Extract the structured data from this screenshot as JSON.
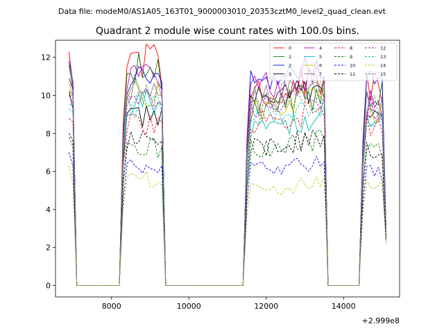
{
  "header": {
    "suptitle": "Data file: modeM0/AS1A05_163T01_9000003010_20353cztM0_level2_quad_clean.evt",
    "title": "Quadrant 2 module wise count rates with 100.0s bins."
  },
  "axis_offset_label": "+2.999e8",
  "colors": {
    "0": "#ff0000",
    "1": "#008000",
    "2": "#0000ff",
    "3": "#000000",
    "4": "#bf00bf",
    "5": "#00bfbf",
    "6": "#bfbf00",
    "7": "#808080"
  },
  "chart_data": {
    "type": "line",
    "title": "Quadrant 2 module wise count rates with 100.0s bins.",
    "xlabel": "",
    "ylabel": "",
    "x_offset": 299900000,
    "xlim": [
      6550,
      15450
    ],
    "ylim": [
      -0.6,
      12.9
    ],
    "x_ticks": [
      8000,
      10000,
      12000,
      14000
    ],
    "x_tick_labels": [
      "8000",
      "10000",
      "12000",
      "14000"
    ],
    "y_ticks": [
      0,
      2,
      4,
      6,
      8,
      10,
      12
    ],
    "y_tick_labels": [
      "0",
      "2",
      "4",
      "6",
      "8",
      "10",
      "12"
    ],
    "grid": false,
    "legend_position": "top-right",
    "legend_columns": 4,
    "segments": [
      {
        "x_start": 6900,
        "x_end": 7000,
        "step": 100
      },
      {
        "x_start": 7100,
        "x_end": 8200,
        "step": 100
      },
      {
        "x_start": 8300,
        "x_end": 9300,
        "step": 100
      },
      {
        "x_start": 9400,
        "x_end": 11400,
        "step": 100
      },
      {
        "x_start": 11500,
        "x_end": 13500,
        "step": 100
      },
      {
        "x_start": 13600,
        "x_end": 14400,
        "step": 100
      },
      {
        "x_start": 14500,
        "x_end": 15100,
        "step": 100
      }
    ],
    "series": [
      {
        "name": "0",
        "color": "#ff0000",
        "dashed": false,
        "levels": [
          12.3,
          0,
          11.8,
          0,
          10.0,
          0,
          10.4
        ],
        "ends": [
          10.5,
          11.0,
          3.0
        ]
      },
      {
        "name": "1",
        "color": "#008000",
        "dashed": false,
        "levels": [
          11.6,
          0,
          11.4,
          0,
          9.3,
          0,
          10.2
        ],
        "ends": [
          10.2,
          10.9,
          2.9
        ]
      },
      {
        "name": "2",
        "color": "#0000ff",
        "dashed": false,
        "levels": [
          11.8,
          0,
          10.8,
          0,
          10.6,
          0,
          10.5
        ],
        "ends": [
          10.7,
          11.0,
          3.0
        ]
      },
      {
        "name": "3",
        "color": "#000000",
        "dashed": false,
        "levels": [
          10.2,
          0,
          9.0,
          0,
          9.6,
          0,
          8.6
        ],
        "ends": [
          9.3,
          9.9,
          2.8
        ]
      },
      {
        "name": "4",
        "color": "#bf00bf",
        "dashed": false,
        "levels": [
          10.9,
          0,
          10.8,
          0,
          10.3,
          0,
          9.6
        ],
        "ends": [
          10.3,
          10.8,
          2.8
        ]
      },
      {
        "name": "5",
        "color": "#00bfbf",
        "dashed": false,
        "levels": [
          9.5,
          0,
          9.6,
          0,
          8.0,
          0,
          9.0
        ],
        "ends": [
          9.5,
          9.8,
          2.7
        ]
      },
      {
        "name": "6",
        "color": "#bfbf00",
        "dashed": false,
        "levels": [
          10.7,
          0,
          10.2,
          0,
          9.3,
          0,
          9.2
        ],
        "ends": [
          9.9,
          10.4,
          2.7
        ]
      },
      {
        "name": "7",
        "color": "#808080",
        "dashed": false,
        "levels": [
          10.3,
          0,
          10.3,
          0,
          9.7,
          0,
          9.5
        ],
        "ends": [
          10.0,
          10.4,
          2.8
        ]
      },
      {
        "name": "8",
        "color": "#ff0000",
        "dashed": true,
        "levels": [
          8.8,
          0,
          8.6,
          0,
          8.5,
          0,
          8.4
        ],
        "ends": [
          8.6,
          8.9,
          2.6
        ]
      },
      {
        "name": "9",
        "color": "#008000",
        "dashed": true,
        "levels": [
          7.8,
          0,
          7.3,
          0,
          7.1,
          0,
          7.1
        ],
        "ends": [
          7.3,
          7.6,
          2.4
        ]
      },
      {
        "name": "10",
        "color": "#0000ff",
        "dashed": true,
        "levels": [
          7.0,
          0,
          6.2,
          0,
          6.0,
          0,
          6.0
        ],
        "ends": [
          6.3,
          6.5,
          2.3
        ]
      },
      {
        "name": "11",
        "color": "#000000",
        "dashed": true,
        "levels": [
          8.0,
          0,
          7.6,
          0,
          7.2,
          0,
          7.2
        ],
        "ends": [
          7.6,
          7.9,
          2.5
        ]
      },
      {
        "name": "12",
        "color": "#bf00bf",
        "dashed": true,
        "levels": [
          10.0,
          0,
          9.7,
          0,
          9.3,
          0,
          9.3
        ],
        "ends": [
          9.6,
          10.0,
          2.8
        ]
      },
      {
        "name": "13",
        "color": "#00bfbf",
        "dashed": true,
        "levels": [
          9.3,
          0,
          9.5,
          0,
          8.9,
          0,
          8.6
        ],
        "ends": [
          9.1,
          9.4,
          2.7
        ]
      },
      {
        "name": "14",
        "color": "#bfbf00",
        "dashed": true,
        "levels": [
          6.3,
          0,
          5.6,
          0,
          5.0,
          0,
          5.3
        ],
        "ends": [
          5.3,
          5.7,
          2.2
        ]
      },
      {
        "name": "15",
        "color": "#808080",
        "dashed": true,
        "levels": [
          10.2,
          0,
          10.0,
          0,
          9.6,
          0,
          9.5
        ],
        "ends": [
          9.8,
          10.2,
          2.8
        ]
      }
    ]
  }
}
